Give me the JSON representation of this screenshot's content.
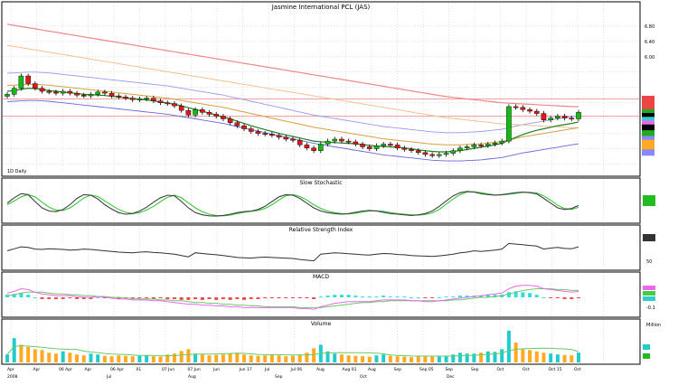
{
  "chart_data": {
    "type": "line",
    "title": "Jasmine International PCL (JAS)",
    "left_label": "1D Daily",
    "colors": {
      "up": "#18b818",
      "down": "#e01818",
      "frame": "#000000",
      "grid": "#c8c8d8",
      "stoch_k": "#404040",
      "stoch_d": "#39c839",
      "macd_line": "#ee66ee",
      "macd_signal": "#66cc66",
      "hist_up": "#33dddd",
      "hist_down": "#ee4444",
      "volume": "#ffaa22",
      "volume_up": "#22cccc"
    },
    "price_panel": {
      "ylim": [
        0.0,
        7.2
      ],
      "y_ticks": [
        "6.80",
        "6.40",
        "6.00"
      ],
      "close": [
        5.02,
        5.18,
        5.5,
        5.3,
        5.18,
        5.1,
        5.08,
        5.05,
        5.1,
        5.05,
        5.0,
        4.98,
        5.02,
        5.08,
        5.05,
        4.98,
        4.95,
        4.92,
        4.88,
        4.9,
        4.92,
        4.85,
        4.8,
        4.78,
        4.72,
        4.6,
        4.48,
        4.62,
        4.55,
        4.5,
        4.45,
        4.38,
        4.28,
        4.2,
        4.12,
        4.05,
        4.0,
        3.98,
        3.95,
        3.9,
        3.85,
        3.82,
        3.7,
        3.62,
        3.55,
        3.72,
        3.8,
        3.85,
        3.8,
        3.78,
        3.72,
        3.65,
        3.6,
        3.68,
        3.72,
        3.7,
        3.62,
        3.58,
        3.55,
        3.5,
        3.45,
        3.42,
        3.45,
        3.48,
        3.55,
        3.62,
        3.65,
        3.7,
        3.68,
        3.72,
        3.75,
        3.8,
        4.7,
        4.68,
        4.62,
        4.58,
        4.52,
        4.35,
        4.4,
        4.45,
        4.4,
        4.38,
        4.55
      ],
      "ma_short": [
        5.1,
        5.12,
        5.15,
        5.18,
        5.17,
        5.15,
        5.12,
        5.1,
        5.08,
        5.06,
        5.04,
        5.02,
        5.01,
        5.0,
        4.99,
        4.97,
        4.95,
        4.93,
        4.91,
        4.89,
        4.87,
        4.85,
        4.82,
        4.79,
        4.76,
        4.72,
        4.67,
        4.63,
        4.58,
        4.53,
        4.48,
        4.43,
        4.38,
        4.32,
        4.26,
        4.2,
        4.15,
        4.1,
        4.05,
        4.0,
        3.96,
        3.92,
        3.88,
        3.84,
        3.8,
        3.78,
        3.77,
        3.76,
        3.75,
        3.74,
        3.73,
        3.71,
        3.69,
        3.67,
        3.66,
        3.65,
        3.64,
        3.62,
        3.6,
        3.57,
        3.55,
        3.53,
        3.52,
        3.52,
        3.53,
        3.55,
        3.58,
        3.61,
        3.64,
        3.67,
        3.7,
        3.74,
        3.82,
        3.9,
        3.97,
        4.03,
        4.08,
        4.12,
        4.16,
        4.2,
        4.23,
        4.26,
        4.3
      ],
      "ma_mid": [
        5.25,
        5.26,
        5.27,
        5.28,
        5.28,
        5.27,
        5.26,
        5.24,
        5.22,
        5.2,
        5.18,
        5.16,
        5.14,
        5.12,
        5.1,
        5.08,
        5.06,
        5.04,
        5.02,
        5.0,
        4.98,
        4.96,
        4.94,
        4.92,
        4.89,
        4.86,
        4.83,
        4.8,
        4.77,
        4.74,
        4.71,
        4.68,
        4.64,
        4.6,
        4.56,
        4.52,
        4.48,
        4.44,
        4.4,
        4.36,
        4.32,
        4.28,
        4.24,
        4.2,
        4.16,
        4.13,
        4.1,
        4.07,
        4.04,
        4.01,
        3.98,
        3.95,
        3.92,
        3.89,
        3.86,
        3.84,
        3.82,
        3.8,
        3.78,
        3.76,
        3.74,
        3.72,
        3.71,
        3.7,
        3.7,
        3.7,
        3.71,
        3.72,
        3.73,
        3.75,
        3.77,
        3.79,
        3.83,
        3.87,
        3.91,
        3.94,
        3.97,
        4.0,
        4.03,
        4.06,
        4.09,
        4.12,
        4.15
      ],
      "ma_long": [
        6.85,
        6.82,
        6.79,
        6.76,
        6.73,
        6.7,
        6.67,
        6.64,
        6.61,
        6.58,
        6.55,
        6.52,
        6.49,
        6.46,
        6.43,
        6.4,
        6.37,
        6.34,
        6.31,
        6.28,
        6.25,
        6.22,
        6.19,
        6.16,
        6.13,
        6.1,
        6.07,
        6.04,
        6.01,
        5.98,
        5.95,
        5.92,
        5.89,
        5.86,
        5.83,
        5.8,
        5.77,
        5.74,
        5.71,
        5.68,
        5.65,
        5.62,
        5.59,
        5.56,
        5.53,
        5.5,
        5.47,
        5.44,
        5.41,
        5.38,
        5.35,
        5.32,
        5.29,
        5.26,
        5.23,
        5.2,
        5.17,
        5.14,
        5.11,
        5.08,
        5.05,
        5.02,
        4.99,
        4.96,
        4.94,
        4.92,
        4.9,
        4.88,
        4.86,
        4.84,
        4.82,
        4.8,
        4.79,
        4.78,
        4.77,
        4.76,
        4.75,
        4.74,
        4.73,
        4.72,
        4.71,
        4.7,
        4.7
      ]
    },
    "right_tags": [
      {
        "price": 4.9,
        "color": "#ee4444"
      },
      {
        "price": 4.8,
        "color": "#ee4444"
      },
      {
        "price": 4.7,
        "color": "#ee4444"
      },
      {
        "price": 4.55,
        "color": "#22aa22"
      },
      {
        "price": 4.45,
        "color": "#000000"
      },
      {
        "price": 4.35,
        "color": "#33cccc"
      },
      {
        "price": 4.25,
        "color": "#ee66ee"
      },
      {
        "price": 4.15,
        "color": "#000000"
      },
      {
        "price": 4.0,
        "color": "#22aa22"
      },
      {
        "price": 3.85,
        "color": "#8888ff"
      },
      {
        "price": 3.75,
        "color": "#ffaa22"
      },
      {
        "price": 3.65,
        "color": "#ffaa22"
      },
      {
        "price": 3.5,
        "color": "#8888ff"
      }
    ],
    "stochastic": {
      "title": "Slow Stochastic",
      "ylim": [
        0,
        100
      ],
      "k": [
        55,
        72,
        85,
        82,
        60,
        40,
        30,
        28,
        35,
        50,
        70,
        82,
        80,
        68,
        50,
        36,
        25,
        20,
        22,
        30,
        42,
        58,
        72,
        80,
        78,
        60,
        40,
        25,
        18,
        15,
        14,
        16,
        20,
        25,
        28,
        30,
        35,
        45,
        60,
        75,
        82,
        80,
        70,
        55,
        40,
        30,
        25,
        22,
        20,
        22,
        26,
        30,
        32,
        30,
        26,
        22,
        20,
        18,
        16,
        18,
        22,
        30,
        45,
        62,
        78,
        88,
        92,
        90,
        85,
        82,
        80,
        82,
        85,
        88,
        90,
        88,
        84,
        70,
        55,
        40,
        35,
        38,
        48
      ],
      "d": [
        50,
        62,
        75,
        82,
        75,
        58,
        42,
        33,
        32,
        40,
        55,
        72,
        80,
        76,
        62,
        48,
        35,
        26,
        22,
        25,
        33,
        45,
        60,
        73,
        80,
        72,
        56,
        40,
        28,
        20,
        16,
        15,
        17,
        22,
        26,
        29,
        32,
        38,
        50,
        65,
        78,
        82,
        76,
        65,
        50,
        38,
        30,
        25,
        22,
        21,
        23,
        27,
        30,
        31,
        29,
        25,
        22,
        20,
        18,
        17,
        19,
        24,
        35,
        52,
        68,
        82,
        90,
        91,
        88,
        84,
        81,
        81,
        83,
        86,
        89,
        89,
        87,
        78,
        64,
        48,
        38,
        35,
        42
      ]
    },
    "rsi": {
      "title": "Relative Strength Index",
      "ylim": [
        0,
        100
      ],
      "tick": "50",
      "values": [
        50,
        56,
        62,
        60,
        55,
        54,
        56,
        55,
        54,
        52,
        53,
        55,
        54,
        52,
        50,
        48,
        46,
        45,
        44,
        46,
        47,
        45,
        44,
        42,
        40,
        36,
        32,
        44,
        42,
        40,
        38,
        36,
        33,
        30,
        29,
        28,
        30,
        31,
        30,
        29,
        28,
        27,
        24,
        22,
        20,
        40,
        42,
        44,
        43,
        41,
        40,
        38,
        37,
        40,
        42,
        41,
        39,
        38,
        36,
        35,
        34,
        33,
        35,
        37,
        40,
        44,
        46,
        50,
        48,
        50,
        52,
        55,
        72,
        70,
        68,
        66,
        64,
        55,
        58,
        60,
        57,
        56,
        62
      ]
    },
    "macd": {
      "title": "MACD",
      "ylim": [
        -0.2,
        0.2
      ],
      "tick": "-0.1",
      "macd": [
        0.05,
        0.07,
        0.1,
        0.09,
        0.06,
        0.04,
        0.03,
        0.02,
        0.02,
        0.02,
        0.01,
        0.0,
        0.0,
        0.01,
        0.0,
        -0.01,
        -0.02,
        -0.02,
        -0.03,
        -0.03,
        -0.03,
        -0.04,
        -0.04,
        -0.05,
        -0.06,
        -0.07,
        -0.08,
        -0.08,
        -0.09,
        -0.09,
        -0.1,
        -0.1,
        -0.11,
        -0.11,
        -0.12,
        -0.12,
        -0.12,
        -0.12,
        -0.12,
        -0.12,
        -0.12,
        -0.12,
        -0.13,
        -0.13,
        -0.14,
        -0.11,
        -0.09,
        -0.07,
        -0.06,
        -0.05,
        -0.05,
        -0.05,
        -0.05,
        -0.04,
        -0.03,
        -0.03,
        -0.03,
        -0.03,
        -0.04,
        -0.04,
        -0.05,
        -0.05,
        -0.04,
        -0.03,
        -0.02,
        -0.01,
        0.0,
        0.01,
        0.02,
        0.03,
        0.04,
        0.05,
        0.1,
        0.13,
        0.14,
        0.14,
        0.13,
        0.1,
        0.09,
        0.08,
        0.07,
        0.06,
        0.07
      ],
      "signal": [
        0.02,
        0.03,
        0.05,
        0.06,
        0.06,
        0.06,
        0.05,
        0.04,
        0.04,
        0.03,
        0.03,
        0.02,
        0.02,
        0.01,
        0.01,
        0.0,
        0.0,
        -0.01,
        -0.01,
        -0.02,
        -0.02,
        -0.02,
        -0.03,
        -0.03,
        -0.04,
        -0.04,
        -0.05,
        -0.06,
        -0.06,
        -0.07,
        -0.07,
        -0.08,
        -0.08,
        -0.09,
        -0.09,
        -0.1,
        -0.1,
        -0.11,
        -0.11,
        -0.11,
        -0.11,
        -0.11,
        -0.12,
        -0.12,
        -0.12,
        -0.12,
        -0.11,
        -0.1,
        -0.09,
        -0.08,
        -0.07,
        -0.06,
        -0.06,
        -0.05,
        -0.05,
        -0.04,
        -0.04,
        -0.04,
        -0.04,
        -0.04,
        -0.04,
        -0.04,
        -0.04,
        -0.04,
        -0.03,
        -0.03,
        -0.02,
        -0.01,
        0.0,
        0.0,
        0.01,
        0.02,
        0.04,
        0.06,
        0.08,
        0.09,
        0.1,
        0.1,
        0.1,
        0.09,
        0.09,
        0.08,
        0.08
      ]
    },
    "volume": {
      "title": "Volume",
      "unit": "Million",
      "values": [
        18,
        55,
        40,
        35,
        30,
        28,
        22,
        20,
        25,
        22,
        18,
        16,
        20,
        18,
        15,
        14,
        16,
        15,
        14,
        15,
        16,
        14,
        13,
        18,
        20,
        26,
        30,
        20,
        18,
        16,
        17,
        18,
        20,
        22,
        18,
        16,
        15,
        16,
        18,
        16,
        14,
        15,
        18,
        22,
        32,
        40,
        25,
        20,
        18,
        16,
        15,
        14,
        13,
        16,
        18,
        15,
        14,
        13,
        12,
        14,
        15,
        13,
        14,
        15,
        18,
        22,
        20,
        20,
        22,
        25,
        24,
        30,
        72,
        45,
        30,
        28,
        25,
        22,
        20,
        18,
        17,
        16,
        22
      ],
      "up": [
        true,
        true,
        false,
        false,
        false,
        false,
        false,
        false,
        true,
        false,
        false,
        false,
        true,
        true,
        false,
        false,
        false,
        false,
        false,
        true,
        true,
        false,
        false,
        false,
        false,
        false,
        false,
        true,
        false,
        false,
        false,
        false,
        false,
        false,
        false,
        false,
        false,
        false,
        false,
        false,
        false,
        false,
        false,
        false,
        false,
        true,
        true,
        true,
        false,
        false,
        false,
        false,
        false,
        true,
        true,
        false,
        false,
        false,
        false,
        false,
        false,
        false,
        true,
        true,
        true,
        true,
        true,
        true,
        false,
        true,
        true,
        true,
        true,
        false,
        false,
        false,
        false,
        false,
        true,
        true,
        false,
        false,
        true
      ]
    },
    "x_ticks_top": [
      "Apr",
      "Apr",
      "06 Apr",
      "Apr",
      "06 Apr",
      "01",
      "07 Jun",
      "07 Jun",
      "Jun",
      "Jun 17",
      "Jul",
      "Jul 06",
      "Aug",
      "Aug 01",
      "Aug",
      "Sep",
      "Sep 05",
      "Sep",
      "Sep",
      "Oct",
      "Oct",
      "Oct 15",
      "Oct"
    ],
    "x_ticks_bottom": [
      "2008",
      "Jul",
      "Aug",
      "Sep",
      "Oct",
      "Dec"
    ]
  }
}
